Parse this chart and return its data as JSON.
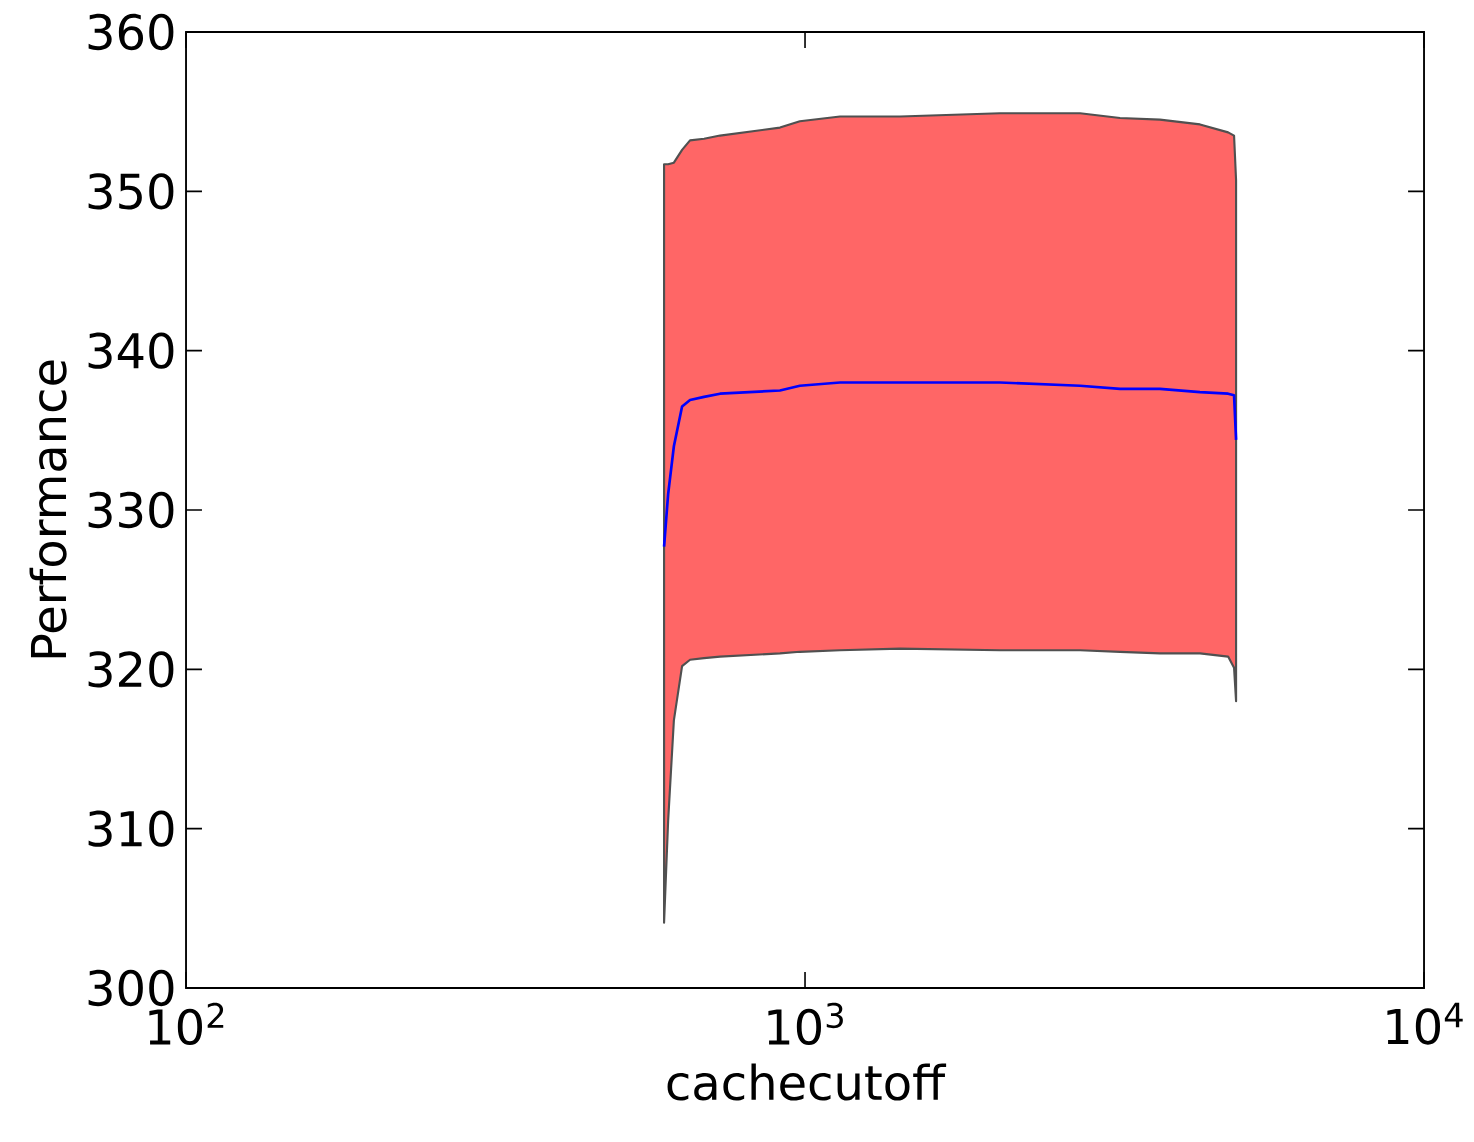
{
  "chart_data": {
    "type": "line",
    "xlabel": "cachecutoff",
    "ylabel": "Performance",
    "log": "x",
    "x": [
      592,
      601,
      614,
      633,
      652,
      687,
      729,
      911,
      981,
      1139,
      1424,
      2065,
      2782,
      3228,
      3745,
      4346,
      4825,
      4933,
      4970
    ],
    "series": [
      {
        "color": "#0000ff",
        "values": [
          327.7,
          331.0,
          334.0,
          336.5,
          336.9,
          337.1,
          337.3,
          337.5,
          337.8,
          338.0,
          338.0,
          338.0,
          337.8,
          337.6,
          337.6,
          337.4,
          337.3,
          337.2,
          334.4
        ],
        "upper": [
          351.7,
          351.7,
          351.8,
          352.6,
          353.2,
          353.3,
          353.5,
          354.0,
          354.4,
          354.7,
          354.7,
          354.9,
          354.9,
          354.6,
          354.5,
          354.2,
          353.7,
          353.5,
          350.7
        ],
        "lower": [
          304.1,
          310.5,
          316.8,
          320.2,
          320.6,
          320.7,
          320.8,
          321.0,
          321.1,
          321.2,
          321.3,
          321.2,
          321.2,
          321.1,
          321.0,
          321.0,
          320.8,
          320.1,
          318.0
        ]
      }
    ],
    "xlim": [
      100,
      10000
    ],
    "xticks": [
      {
        "value": 100,
        "label": "10$^{2}$"
      },
      {
        "value": 1000,
        "label": "10$^{3}$"
      },
      {
        "value": 10000,
        "label": "10$^{4}$"
      }
    ],
    "ylim": [
      300,
      360
    ],
    "yticks": [
      300,
      310,
      320,
      330,
      340,
      350,
      360
    ]
  }
}
